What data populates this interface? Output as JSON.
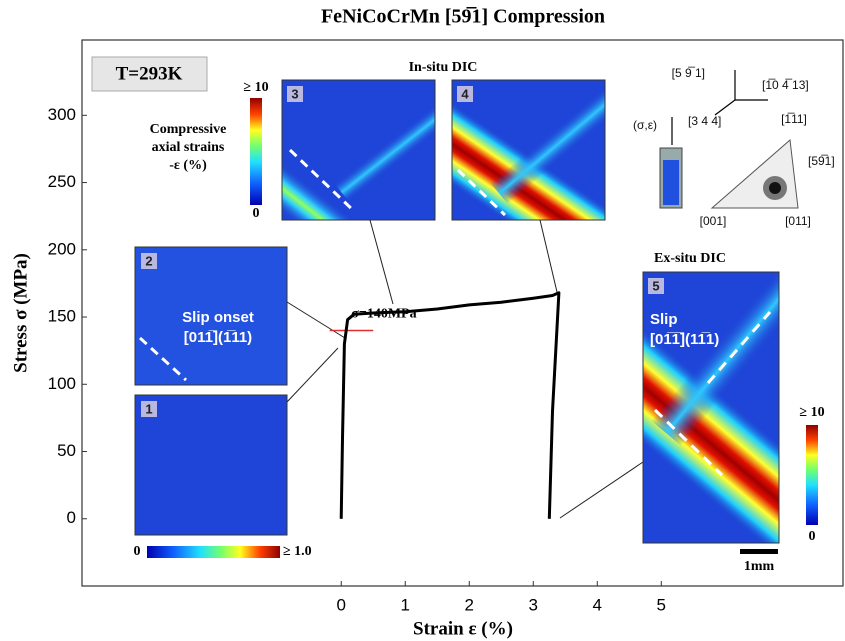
{
  "chart_data": {
    "type": "line",
    "title": "FeNiCoCrMn [59̅1] Compression",
    "xlabel": "Strain ε (%)",
    "ylabel": "Stress σ (MPa)",
    "x": [
      0,
      0.02,
      0.05,
      0.1,
      0.2,
      0.5,
      1,
      1.5,
      2,
      2.5,
      3,
      3.3,
      3.4,
      3.3,
      3.25
    ],
    "values": [
      0,
      60,
      130,
      148,
      152,
      153,
      154,
      156,
      159,
      161,
      164,
      166,
      168,
      80,
      0
    ],
    "color": "#000000",
    "xlim": [
      -4.05,
      7.87
    ],
    "ylim": [
      -50,
      356
    ],
    "xticks": [
      0,
      1,
      2,
      3,
      4,
      5
    ],
    "yticks": [
      0,
      50,
      100,
      150,
      200,
      250,
      300
    ],
    "grid": false,
    "reference_line": {
      "value": 140,
      "label": "σ=140MPa",
      "color": "#e03030"
    },
    "temperature": "T=293K",
    "in_situ_title": "In-situ DIC",
    "ex_situ_title": "Ex-situ DIC",
    "colorbar_title": [
      "Compressive",
      "axial strains",
      "-ε (%)"
    ],
    "colorbar_top": "≥ 10",
    "colorbar_bottom": "0",
    "bottom_colorbar": [
      "0",
      "≥ 1.0"
    ],
    "right_colorbar": [
      "≥ 10",
      "0"
    ],
    "panels": [
      {
        "label": "1"
      },
      {
        "label": "2",
        "text": [
          "Slip onset",
          "[011̅](1̅11)"
        ]
      },
      {
        "label": "3"
      },
      {
        "label": "4"
      },
      {
        "label": "5",
        "text": [
          "Slip",
          "[01̅1̅](11̅1)"
        ]
      }
    ],
    "scale_bar": "1mm",
    "crystal": {
      "axes": [
        "[5 9̅ 1]",
        "[1̅0 4̅ 13]",
        "[3 4 4]"
      ],
      "load": "(σ,ε)",
      "poles": [
        "[1̅11]",
        "[59̅1]",
        "[001]",
        "[011]"
      ]
    }
  }
}
